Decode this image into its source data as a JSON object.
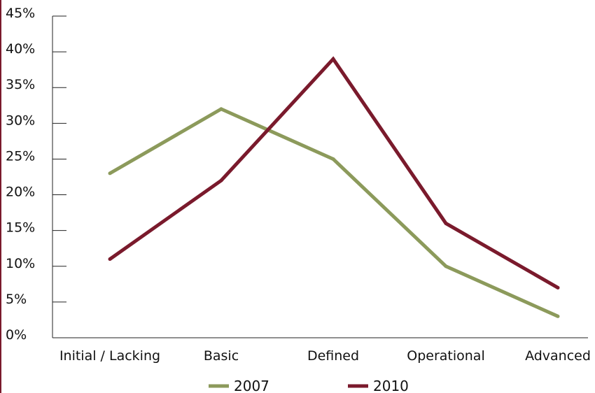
{
  "chart_data": {
    "type": "line",
    "categories": [
      "Initial / Lacking",
      "Basic",
      "Defined",
      "Operational",
      "Advanced"
    ],
    "series": [
      {
        "name": "2007",
        "color": "#8c9a5b",
        "values": [
          23,
          32,
          25,
          10,
          3
        ]
      },
      {
        "name": "2010",
        "color": "#7a1a2c",
        "values": [
          11,
          22,
          39,
          16,
          7
        ]
      }
    ],
    "y_ticks": [
      "0%",
      "5%",
      "10%",
      "15%",
      "20%",
      "25%",
      "30%",
      "35%",
      "40%",
      "45%"
    ],
    "ylim": [
      0,
      45
    ],
    "grid": false,
    "legend": "bottom"
  },
  "colors": {
    "frame": "#7a1a2c"
  }
}
